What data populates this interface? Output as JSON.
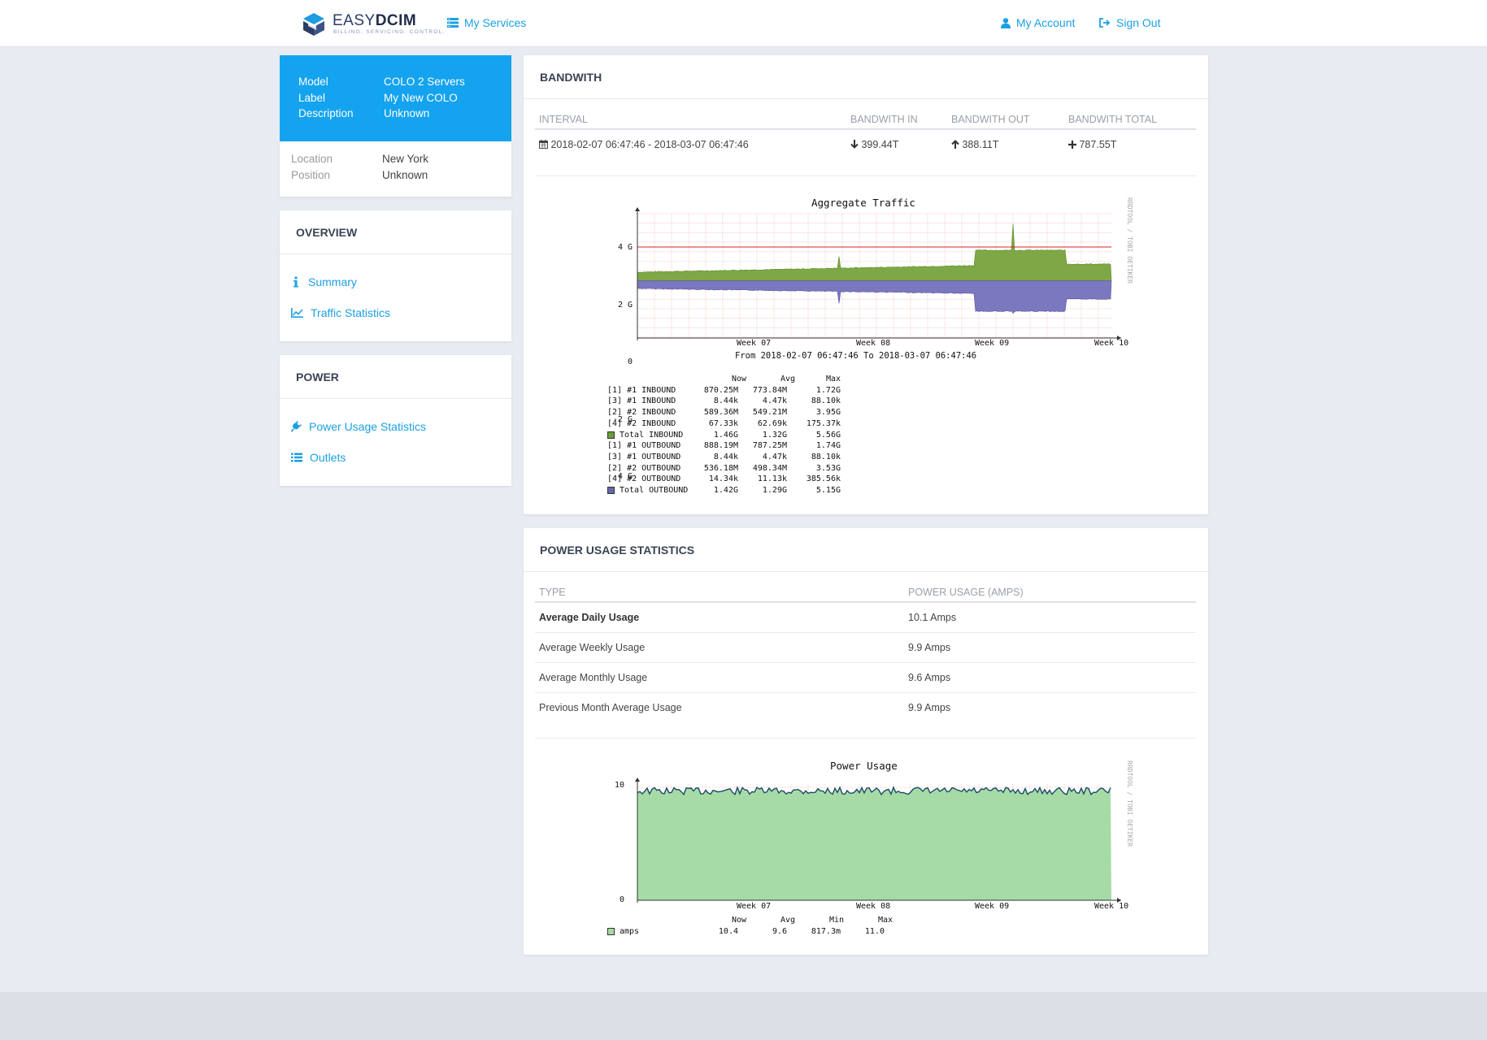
{
  "brand": {
    "word_a": "EASY",
    "word_b": "DCIM",
    "tagline": "BILLING. SERVICING. CONTROL."
  },
  "nav": {
    "services": "My Services",
    "account": "My Account",
    "signout": "Sign Out"
  },
  "service": {
    "model_label": "Model",
    "model": "COLO 2 Servers",
    "label_label": "Label",
    "label": "My New COLO",
    "desc_label": "Description",
    "desc": "Unknown",
    "location_label": "Location",
    "location": "New York",
    "position_label": "Position",
    "position": "Unknown"
  },
  "overview": {
    "title": "OVERVIEW",
    "items": [
      "Summary",
      "Traffic Statistics"
    ]
  },
  "power_menu": {
    "title": "POWER",
    "items": [
      "Power Usage Statistics",
      "Outlets"
    ]
  },
  "bandwidth": {
    "title": "BANDWITH",
    "headers": [
      "INTERVAL",
      "BANDWITH IN",
      "BANDWITH OUT",
      "BANDWITH TOTAL"
    ],
    "row": {
      "interval": "2018-02-07 06:47:46 - 2018-03-07 06:47:46",
      "in": "399.44T",
      "out": "388.11T",
      "total": "787.55T"
    }
  },
  "traffic_graph": {
    "title": "Aggregate Traffic",
    "watermark": "RRDTOOL / TOBI OETIKER",
    "yticks": [
      "4 G",
      "2 G",
      "0",
      "-2 G",
      "-4 G"
    ],
    "xticks": [
      "Week 07",
      "Week 08",
      "Week 09",
      "Week 10"
    ],
    "range": "From 2018-02-07 06:47:46 To 2018-03-07 06:47:46",
    "legend_headers": [
      "Now",
      "Avg",
      "Max"
    ],
    "legend": [
      {
        "name": "[1] #1 INBOUND",
        "now": "870.25M",
        "avg": "773.84M",
        "max": "1.72G"
      },
      {
        "name": "[3] #1 INBOUND",
        "now": "8.44k",
        "avg": "4.47k",
        "max": "88.10k"
      },
      {
        "name": "[2] #2 INBOUND",
        "now": "589.36M",
        "avg": "549.21M",
        "max": "3.95G"
      },
      {
        "name": "[4] #2 INBOUND",
        "now": "67.33k",
        "avg": "62.69k",
        "max": "175.37k"
      },
      {
        "name": "Total INBOUND",
        "now": "1.46G",
        "avg": "1.32G",
        "max": "5.56G",
        "swatch": "#6b9e38"
      },
      {
        "name": "[1] #1 OUTBOUND",
        "now": "888.19M",
        "avg": "787.25M",
        "max": "1.74G"
      },
      {
        "name": "[3] #1 OUTBOUND",
        "now": "8.44k",
        "avg": "4.47k",
        "max": "88.10k"
      },
      {
        "name": "[2] #2 OUTBOUND",
        "now": "536.18M",
        "avg": "498.34M",
        "max": "3.53G"
      },
      {
        "name": "[4] #2 OUTBOUND",
        "now": "14.34k",
        "avg": "11.13k",
        "max": "385.56k"
      },
      {
        "name": "Total OUTBOUND",
        "now": "1.42G",
        "avg": "1.29G",
        "max": "5.15G",
        "swatch": "#6666a8"
      }
    ]
  },
  "power_stats": {
    "title": "POWER USAGE STATISTICS",
    "headers": [
      "TYPE",
      "POWER USAGE (AMPS)"
    ],
    "rows": [
      {
        "type": "Average Daily Usage",
        "value": "10.1 Amps"
      },
      {
        "type": "Average Weekly Usage",
        "value": "9.9 Amps"
      },
      {
        "type": "Average Monthly Usage",
        "value": "9.6 Amps"
      },
      {
        "type": "Previous Month Average Usage",
        "value": "9.9 Amps"
      }
    ]
  },
  "power_graph": {
    "title": "Power Usage",
    "watermark": "RRDTOOL / TOBI OETIKER",
    "yticks": [
      "10",
      "0"
    ],
    "xticks": [
      "Week 07",
      "Week 08",
      "Week 09",
      "Week 10"
    ],
    "legend_headers": [
      "Now",
      "Avg",
      "Min",
      "Max"
    ],
    "legend": {
      "name": "amps",
      "now": "10.4",
      "avg": "9.6",
      "min": "817.3m",
      "max": "11.0"
    }
  },
  "colors": {
    "accent": "#1ba0e2",
    "header_blue": "#14a3ef",
    "inbound": "#7ea845",
    "outbound": "#7b78c0",
    "power_fill": "#a6dba6",
    "power_line": "#1a4a68"
  }
}
